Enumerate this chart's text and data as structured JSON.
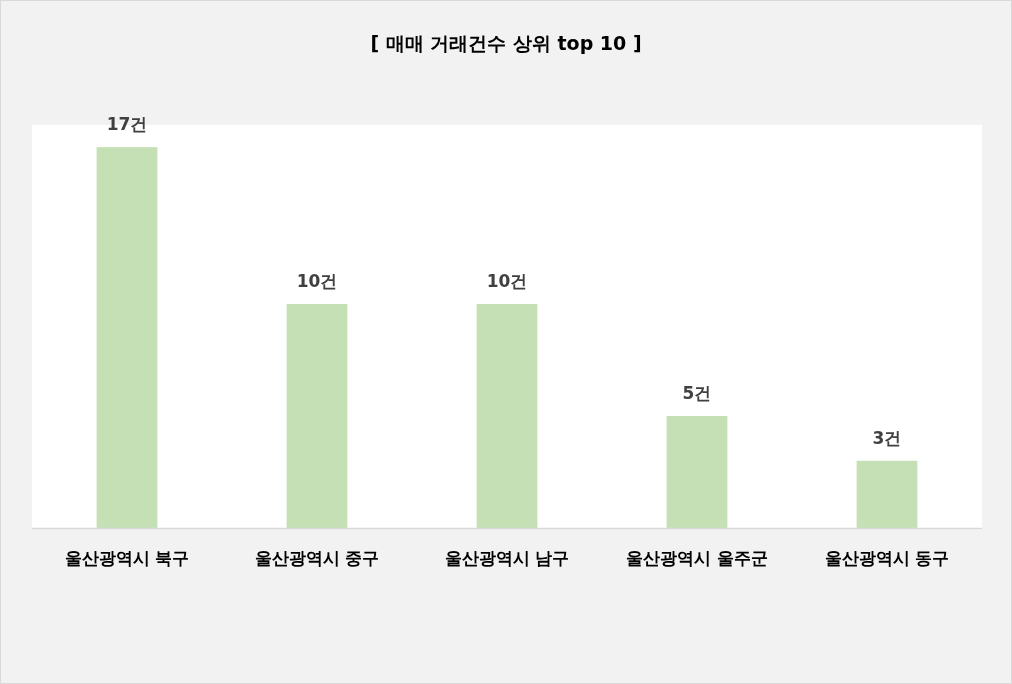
{
  "chart_data": {
    "type": "bar",
    "title": "[ 매매 거래건수 상위 top 10 ]",
    "categories": [
      "울산광역시 북구",
      "울산광역시 중구",
      "울산광역시 남구",
      "울산광역시 울주군",
      "울산광역시 동구"
    ],
    "values": [
      17,
      10,
      10,
      5,
      3
    ],
    "value_labels": [
      "17건",
      "10건",
      "10건",
      "5건",
      "3건"
    ],
    "color": "#c5e0b4"
  }
}
